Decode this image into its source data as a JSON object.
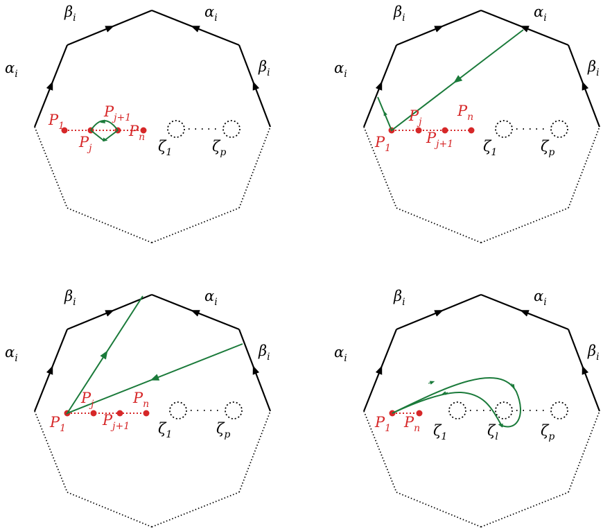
{
  "panels": [
    {
      "id": "top-left",
      "side_labels": {
        "alpha_left": "α",
        "beta_topleft": "β",
        "alpha_topright": "α",
        "beta_right": "β",
        "sub": "i"
      },
      "points": [
        {
          "name": "P",
          "sub": "1"
        },
        {
          "name": "P",
          "sub": "j"
        },
        {
          "name": "P",
          "sub": "j+1"
        },
        {
          "name": "P",
          "sub": "n"
        }
      ],
      "zetas": [
        {
          "name": "ζ",
          "sub": "1"
        },
        {
          "name": "ζ",
          "sub": "p"
        }
      ]
    },
    {
      "id": "top-right",
      "side_labels": {
        "alpha_left": "α",
        "beta_topleft": "β",
        "alpha_topright": "α",
        "beta_right": "β",
        "sub": "i"
      },
      "points": [
        {
          "name": "P",
          "sub": "1"
        },
        {
          "name": "P",
          "sub": "j"
        },
        {
          "name": "P",
          "sub": "j+1"
        },
        {
          "name": "P",
          "sub": "n"
        }
      ],
      "zetas": [
        {
          "name": "ζ",
          "sub": "1"
        },
        {
          "name": "ζ",
          "sub": "p"
        }
      ]
    },
    {
      "id": "bottom-left",
      "side_labels": {
        "alpha_left": "α",
        "beta_topleft": "β",
        "alpha_topright": "α",
        "beta_right": "β",
        "sub": "i"
      },
      "points": [
        {
          "name": "P",
          "sub": "1"
        },
        {
          "name": "P",
          "sub": "j"
        },
        {
          "name": "P",
          "sub": "j+1"
        },
        {
          "name": "P",
          "sub": "n"
        }
      ],
      "zetas": [
        {
          "name": "ζ",
          "sub": "1"
        },
        {
          "name": "ζ",
          "sub": "p"
        }
      ]
    },
    {
      "id": "bottom-right",
      "side_labels": {
        "alpha_left": "α",
        "beta_topleft": "β",
        "alpha_topright": "α",
        "beta_right": "β",
        "sub": "i"
      },
      "points": [
        {
          "name": "P",
          "sub": "1"
        },
        {
          "name": "P",
          "sub": "n"
        }
      ],
      "zetas": [
        {
          "name": "ζ",
          "sub": "1"
        },
        {
          "name": "ζ",
          "sub": "l"
        },
        {
          "name": "ζ",
          "sub": "p"
        }
      ]
    }
  ],
  "colors": {
    "polygon": "#000000",
    "point": "#d62728",
    "curve": "#1a7a3a"
  }
}
